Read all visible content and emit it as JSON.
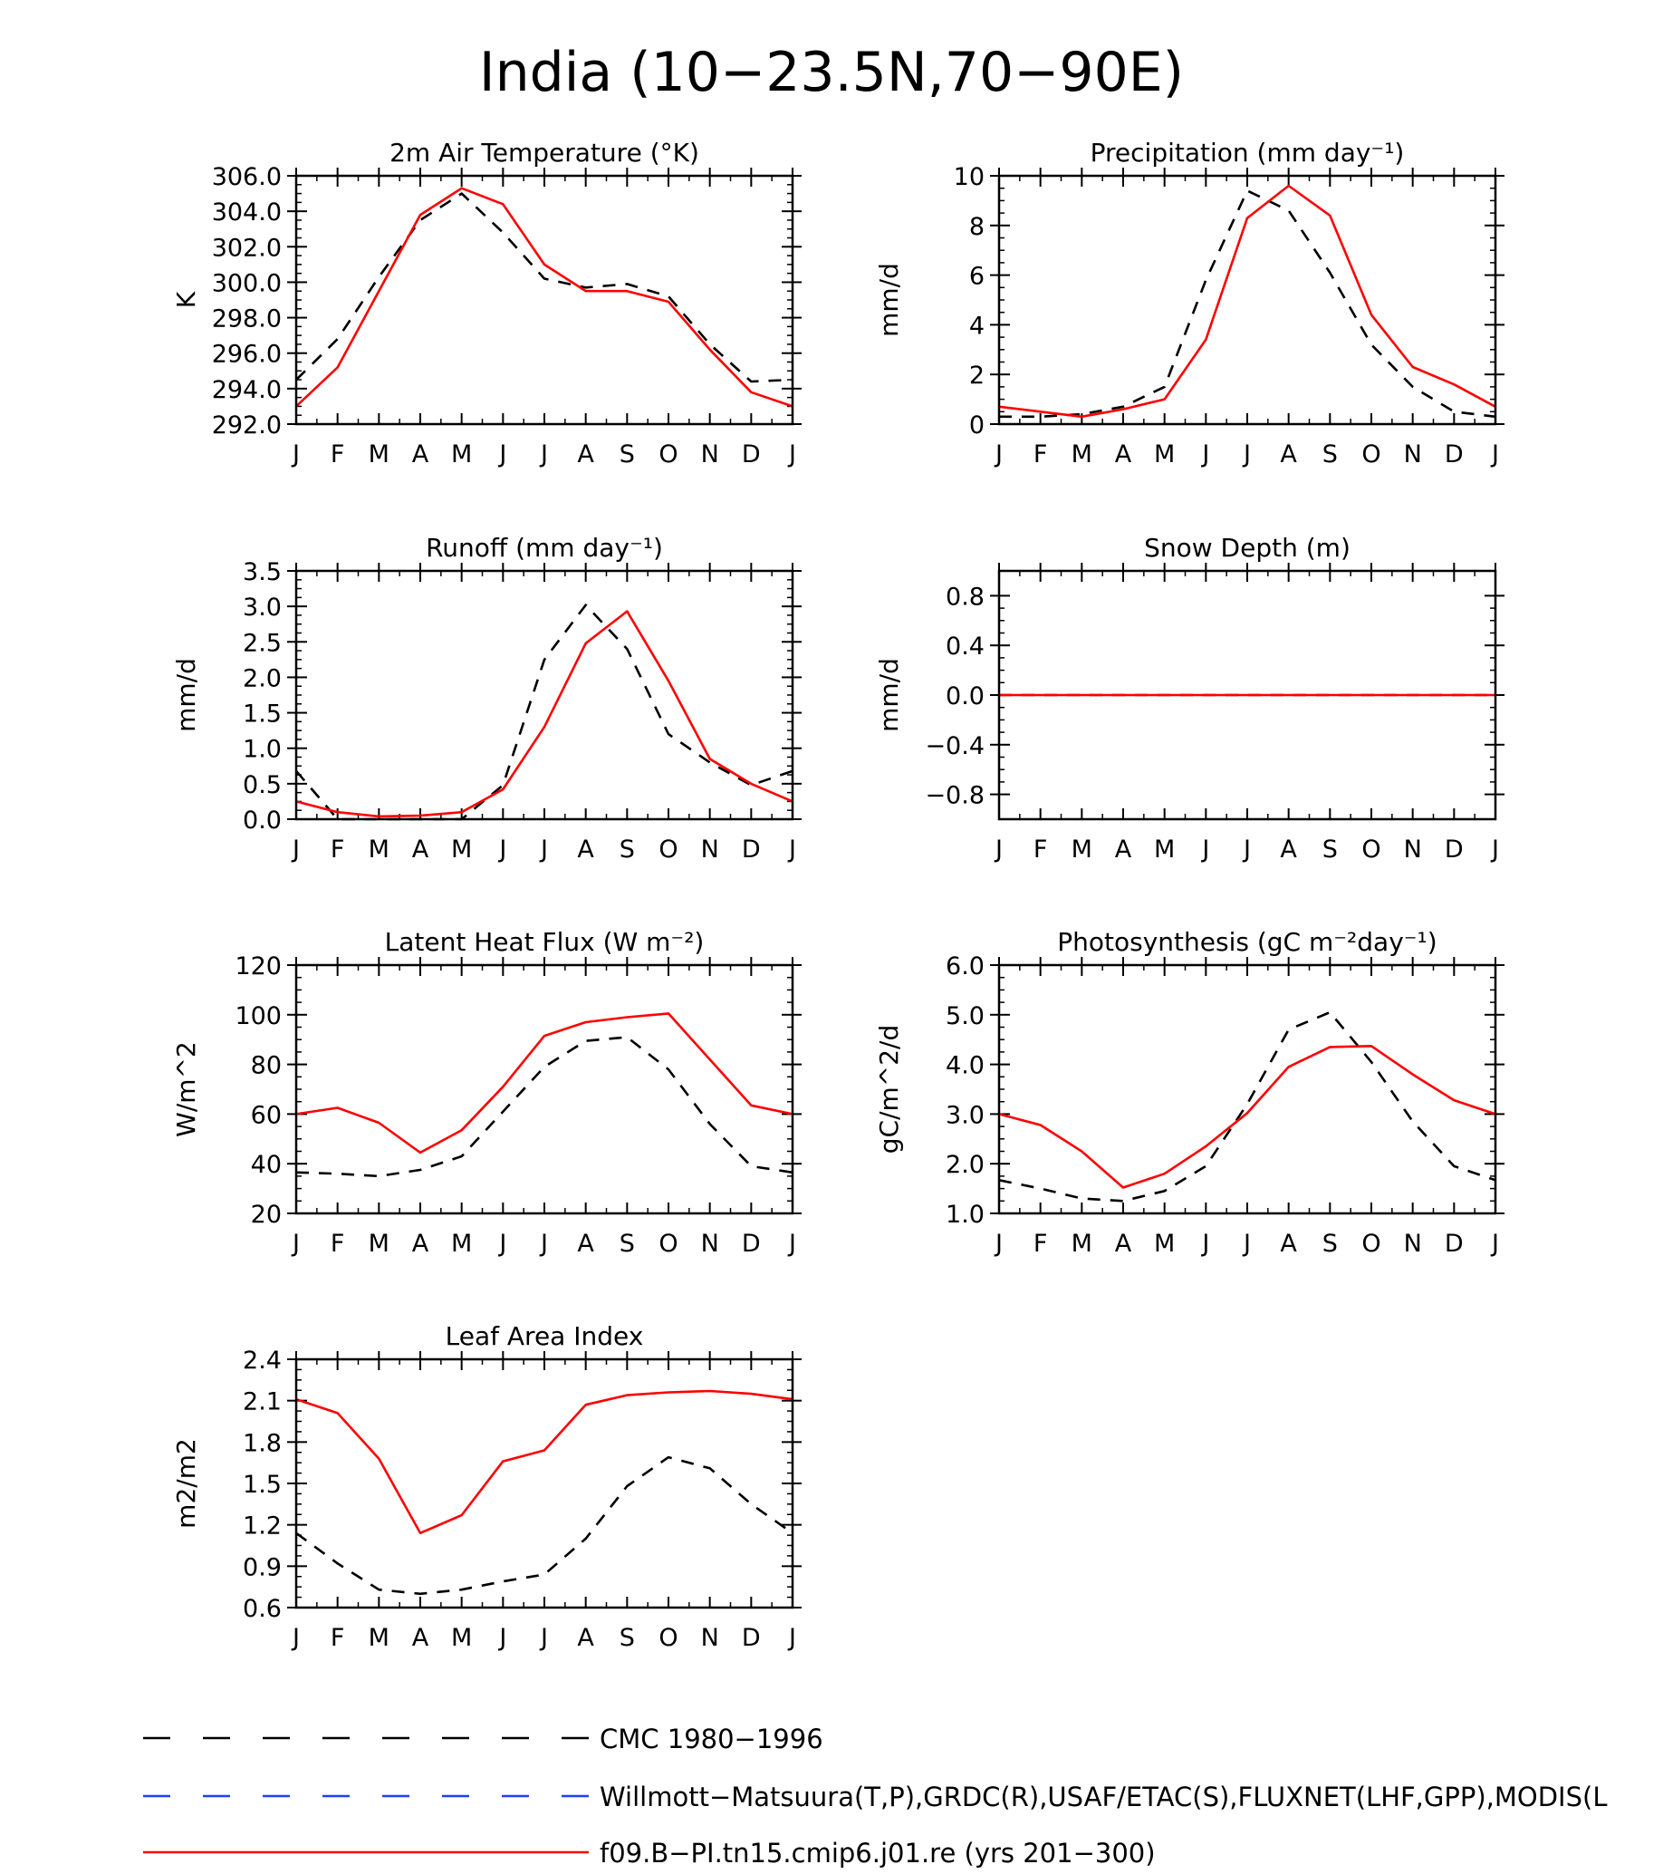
{
  "figure": {
    "title": "India (10−23.5N,70−90E)"
  },
  "colors": {
    "obs": "#000000",
    "model": "#ff0000",
    "obs2": "#1f3fff",
    "zero_line": "#000000"
  },
  "legend": {
    "entries": [
      {
        "label": "CMC 1980−1996",
        "color": "#000000",
        "style": "dashed"
      },
      {
        "label": "Willmott−Matsuura(T,P),GRDC(R),USAF/ETAC(S),FLUXNET(LHF,GPP),MODIS(L",
        "color": "#1f3fff",
        "style": "dashed"
      },
      {
        "label": "f09.B−PI.tn15.cmip6.j01.re (yrs 201−300)",
        "color": "#ff0000",
        "style": "solid"
      }
    ]
  },
  "chart_data": [
    {
      "type": "line",
      "title": "2m Air Temperature (°K)",
      "ylabel": "K",
      "categories": [
        "J",
        "F",
        "M",
        "A",
        "M",
        "J",
        "J",
        "A",
        "S",
        "O",
        "N",
        "D",
        "J"
      ],
      "ylim": [
        292,
        306
      ],
      "yticks": [
        292,
        294,
        296,
        298,
        300,
        302,
        304,
        306
      ],
      "ytick_labels": [
        "292.0",
        "294.0",
        "296.0",
        "298.0",
        "300.0",
        "302.0",
        "304.0",
        "306.0"
      ],
      "series": [
        {
          "values": [
            294.5,
            296.8,
            300.3,
            303.5,
            305.0,
            302.8,
            300.2,
            299.7,
            299.9,
            299.2,
            296.5,
            294.4,
            294.5
          ]
        },
        {
          "values": [
            293.0,
            295.2,
            299.5,
            303.8,
            305.3,
            304.4,
            301.0,
            299.5,
            299.5,
            298.9,
            296.2,
            293.8,
            293.0
          ]
        }
      ]
    },
    {
      "type": "line",
      "title": "Precipitation (mm day⁻¹)",
      "ylabel": "mm/d",
      "categories": [
        "J",
        "F",
        "M",
        "A",
        "M",
        "J",
        "J",
        "A",
        "S",
        "O",
        "N",
        "D",
        "J"
      ],
      "ylim": [
        0,
        10
      ],
      "yticks": [
        0,
        2,
        4,
        6,
        8,
        10
      ],
      "ytick_labels": [
        "0",
        "2",
        "4",
        "6",
        "8",
        "10"
      ],
      "series": [
        {
          "values": [
            0.3,
            0.3,
            0.4,
            0.7,
            1.5,
            5.8,
            9.4,
            8.6,
            6.1,
            3.2,
            1.5,
            0.5,
            0.3
          ]
        },
        {
          "values": [
            0.7,
            0.5,
            0.3,
            0.6,
            1.0,
            3.4,
            8.3,
            9.6,
            8.4,
            4.4,
            2.3,
            1.6,
            0.7
          ]
        }
      ]
    },
    {
      "type": "line",
      "title": "Runoff (mm day⁻¹)",
      "ylabel": "mm/d",
      "categories": [
        "J",
        "F",
        "M",
        "A",
        "M",
        "J",
        "J",
        "A",
        "S",
        "O",
        "N",
        "D",
        "J"
      ],
      "ylim": [
        0,
        3.5
      ],
      "yticks": [
        0,
        0.5,
        1,
        1.5,
        2,
        2.5,
        3,
        3.5
      ],
      "ytick_labels": [
        "0.0",
        "0.5",
        "1.0",
        "1.5",
        "2.0",
        "2.5",
        "3.0",
        "3.5"
      ],
      "series": [
        {
          "values": [
            0.68,
            0.0,
            0.0,
            0.0,
            0.0,
            0.48,
            2.25,
            3.02,
            2.4,
            1.2,
            0.8,
            0.48,
            0.68
          ]
        },
        {
          "values": [
            0.25,
            0.1,
            0.04,
            0.05,
            0.1,
            0.42,
            1.3,
            2.48,
            2.93,
            1.95,
            0.85,
            0.5,
            0.25
          ]
        }
      ]
    },
    {
      "type": "line",
      "title": "Snow Depth (m)",
      "ylabel": "mm/d",
      "categories": [
        "J",
        "F",
        "M",
        "A",
        "M",
        "J",
        "J",
        "A",
        "S",
        "O",
        "N",
        "D",
        "J"
      ],
      "ylim": [
        -1.0,
        1.0
      ],
      "yticks": [
        -0.8,
        -0.4,
        0,
        0.4,
        0.8
      ],
      "ytick_labels": [
        "−0.8",
        "−0.4",
        "0.0",
        "0.4",
        "0.8"
      ],
      "zero_line": true,
      "series": [
        {
          "values": [
            0,
            0,
            0,
            0,
            0,
            0,
            0,
            0,
            0,
            0,
            0,
            0,
            0
          ]
        },
        {
          "values": [
            0,
            0,
            0,
            0,
            0,
            0,
            0,
            0,
            0,
            0,
            0,
            0,
            0
          ]
        }
      ]
    },
    {
      "type": "line",
      "title": "Latent Heat Flux (W m⁻²)",
      "ylabel": "W/m^2",
      "categories": [
        "J",
        "F",
        "M",
        "A",
        "M",
        "J",
        "J",
        "A",
        "S",
        "O",
        "N",
        "D",
        "J"
      ],
      "ylim": [
        20,
        120
      ],
      "yticks": [
        20,
        40,
        60,
        80,
        100,
        120
      ],
      "ytick_labels": [
        "20",
        "40",
        "60",
        "80",
        "100",
        "120"
      ],
      "series": [
        {
          "values": [
            36.5,
            36,
            35,
            37.5,
            43,
            61,
            79,
            89.5,
            91,
            78,
            56,
            39,
            36.5
          ]
        },
        {
          "values": [
            60,
            62.5,
            56.5,
            44.5,
            53.5,
            71,
            91.5,
            97,
            99,
            100.5,
            82,
            63.5,
            60
          ]
        }
      ]
    },
    {
      "type": "line",
      "title": "Photosynthesis (gC m⁻²day⁻¹)",
      "ylabel": "gC/m^2/d",
      "categories": [
        "J",
        "F",
        "M",
        "A",
        "M",
        "J",
        "J",
        "A",
        "S",
        "O",
        "N",
        "D",
        "J"
      ],
      "ylim": [
        1,
        6
      ],
      "yticks": [
        1,
        2,
        3,
        4,
        5,
        6
      ],
      "ytick_labels": [
        "1.0",
        "2.0",
        "3.0",
        "4.0",
        "5.0",
        "6.0"
      ],
      "series": [
        {
          "values": [
            1.67,
            1.5,
            1.3,
            1.25,
            1.45,
            1.95,
            3.2,
            4.7,
            5.05,
            4.05,
            2.85,
            1.95,
            1.67
          ]
        },
        {
          "values": [
            3.0,
            2.78,
            2.25,
            1.52,
            1.8,
            2.35,
            3.02,
            3.95,
            4.35,
            4.37,
            3.8,
            3.28,
            3.0
          ]
        }
      ]
    },
    {
      "type": "line",
      "title": "Leaf Area Index",
      "ylabel": "m2/m2",
      "categories": [
        "J",
        "F",
        "M",
        "A",
        "M",
        "J",
        "J",
        "A",
        "S",
        "O",
        "N",
        "D",
        "J"
      ],
      "ylim": [
        0.6,
        2.4
      ],
      "yticks": [
        0.6,
        0.9,
        1.2,
        1.5,
        1.8,
        2.1,
        2.4
      ],
      "ytick_labels": [
        "0.6",
        "0.9",
        "1.2",
        "1.5",
        "1.8",
        "2.1",
        "2.4"
      ],
      "series": [
        {
          "values": [
            1.14,
            0.92,
            0.73,
            0.7,
            0.73,
            0.79,
            0.84,
            1.1,
            1.48,
            1.69,
            1.61,
            1.35,
            1.14
          ]
        },
        {
          "values": [
            2.11,
            2.01,
            1.68,
            1.14,
            1.27,
            1.66,
            1.74,
            2.07,
            2.14,
            2.16,
            2.17,
            2.15,
            2.11
          ]
        }
      ]
    }
  ]
}
